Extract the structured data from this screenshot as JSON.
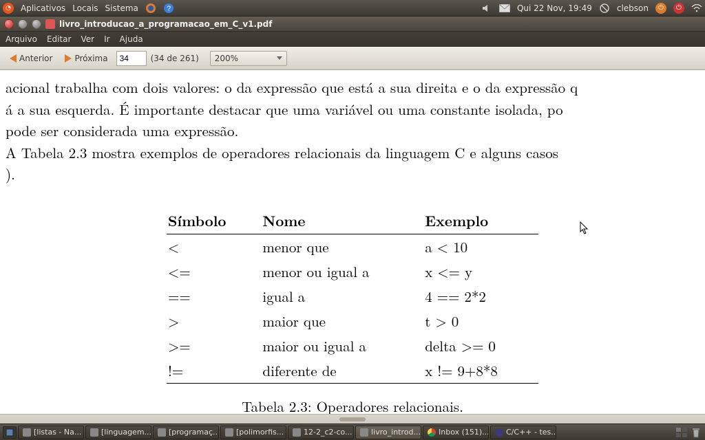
{
  "panel": {
    "menus": [
      "Aplicativos",
      "Locais",
      "Sistema"
    ],
    "mail_icon": "mail-icon",
    "sound_icon": "sound-icon",
    "clock": "Qui 22 Nov, 19:49",
    "user": "clebson"
  },
  "window": {
    "title": "livro_introducao_a_programacao_em_C_v1.pdf",
    "menus": [
      "Arquivo",
      "Editar",
      "Ver",
      "Ir",
      "Ajuda"
    ],
    "toolbar": {
      "prev": "Anterior",
      "next": "Próxima",
      "page_value": "34",
      "page_of": "(34 de 261)",
      "zoom": "200%"
    }
  },
  "doc": {
    "paragraph1": "acional trabalha com dois valores: o da expressão que está a sua direita e o da expressão q",
    "paragraph2": "á a sua esquerda.  É importante destacar que uma variável ou uma constante isolada, po",
    "paragraph3": " pode ser considerada uma expressão.",
    "paragraph4": "  A Tabela 2.3 mostra exemplos de operadores relacionais da linguagem C e alguns casos",
    "paragraph5": ").",
    "caption": "Tabela 2.3: Operadores relacionais.",
    "table": {
      "headers": [
        "Símbolo",
        "Nome",
        "Exemplo"
      ],
      "rows": [
        {
          "sym": "<",
          "nome": "menor que",
          "ex": "a < 10"
        },
        {
          "sym": "<=",
          "nome": "menor ou igual a",
          "ex": "x <= y"
        },
        {
          "sym": "==",
          "nome": "igual a",
          "ex": "4 == 2*2"
        },
        {
          "sym": ">",
          "nome": "maior que",
          "ex": "t > 0"
        },
        {
          "sym": ">=",
          "nome": "maior ou igual a",
          "ex": "delta >= 0"
        },
        {
          "sym": "!=",
          "nome": "diferente de",
          "ex": "x != 9+8*8"
        }
      ]
    }
  },
  "taskbar": {
    "items": [
      {
        "label": "[listas - Na...",
        "icon": "generic"
      },
      {
        "label": "[linguagem...",
        "icon": "generic"
      },
      {
        "label": "[programaç...",
        "icon": "generic"
      },
      {
        "label": "[polimorfis...",
        "icon": "generic"
      },
      {
        "label": "12-2_c2-co...",
        "icon": "generic"
      },
      {
        "label": "livro_introd...",
        "icon": "generic",
        "active": true
      },
      {
        "label": "Inbox (151)...",
        "icon": "chrome"
      },
      {
        "label": "C/C++ - tes...",
        "icon": "ecl"
      }
    ]
  }
}
